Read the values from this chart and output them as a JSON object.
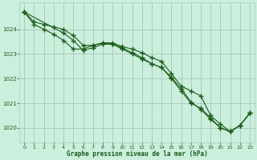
{
  "title": "Graphe pression niveau de la mer (hPa)",
  "background_color": "#cceedd",
  "grid_color": "#aaccbb",
  "line_color": "#1a5c1a",
  "xlim": [
    -0.5,
    23.5
  ],
  "ylim": [
    1019.4,
    1025.1
  ],
  "yticks": [
    1020,
    1021,
    1022,
    1023,
    1024
  ],
  "xticks": [
    0,
    1,
    2,
    3,
    4,
    5,
    6,
    7,
    8,
    9,
    10,
    11,
    12,
    13,
    14,
    15,
    16,
    17,
    18,
    19,
    20,
    21,
    22,
    23
  ],
  "series1_x": [
    0,
    1,
    2,
    3,
    4,
    5,
    6,
    7,
    8,
    9,
    10,
    11,
    12,
    13,
    14,
    15,
    16,
    17,
    18,
    19,
    20,
    21,
    22,
    23
  ],
  "series1_y": [
    1024.7,
    1024.3,
    1024.2,
    1024.1,
    1024.0,
    1023.75,
    1023.35,
    1023.35,
    1023.45,
    1023.45,
    1023.3,
    1023.2,
    1023.05,
    1022.85,
    1022.7,
    1022.2,
    1021.7,
    1021.5,
    1021.3,
    1020.5,
    1020.15,
    1019.85,
    1020.1,
    1020.6
  ],
  "series2_x": [
    0,
    1,
    2,
    3,
    4,
    5,
    6,
    7,
    8,
    9,
    10,
    11,
    12,
    13,
    14,
    15,
    16,
    17,
    18,
    19,
    20,
    21,
    22,
    23
  ],
  "series2_y": [
    1024.7,
    1024.2,
    1024.0,
    1023.8,
    1023.55,
    1023.2,
    1023.2,
    1023.35,
    1023.45,
    1023.4,
    1023.2,
    1023.0,
    1022.8,
    1022.6,
    1022.45,
    1022.0,
    1021.5,
    1021.0,
    1020.8,
    1020.4,
    1020.0,
    1019.85,
    1020.1,
    1020.6
  ],
  "series3_x": [
    0,
    4,
    5,
    6,
    7,
    8,
    9,
    10,
    11,
    12,
    13,
    14,
    15,
    16,
    17,
    18,
    19,
    20,
    21,
    22,
    23
  ],
  "series3_y": [
    1024.7,
    1023.85,
    1023.55,
    1023.15,
    1023.25,
    1023.4,
    1023.4,
    1023.25,
    1023.05,
    1022.85,
    1022.6,
    1022.45,
    1022.05,
    1021.6,
    1021.05,
    1020.75,
    1020.35,
    1020.0,
    1019.85,
    1020.1,
    1020.6
  ]
}
